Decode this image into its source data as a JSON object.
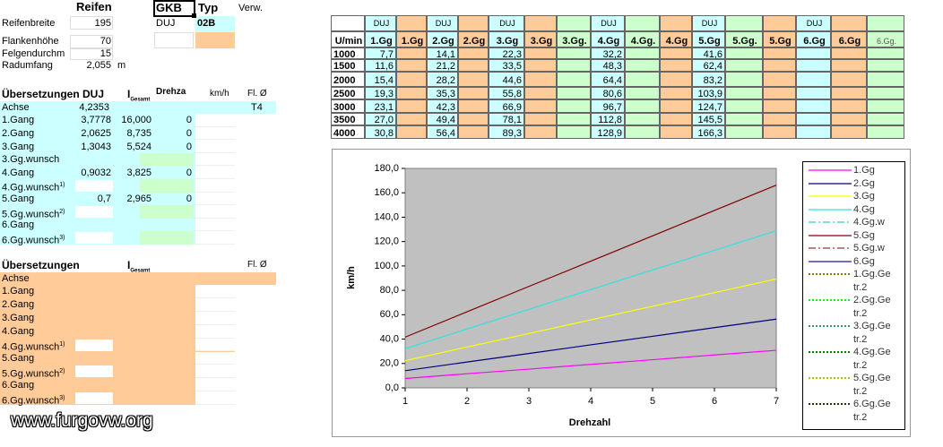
{
  "tire": {
    "title": "Reifen",
    "rows": [
      {
        "label": "Reifenbreite",
        "value": "195"
      },
      {
        "label": "Flankenhöhe",
        "value": "70"
      },
      {
        "label": "Felgendurchm",
        "value": "15"
      },
      {
        "label": "Radumfang",
        "value": "2,055",
        "unit": "m"
      }
    ]
  },
  "gkb": {
    "title": "GKB",
    "type_label": "Typ",
    "verw": "Verw.",
    "code": "DUJ",
    "type": "02B"
  },
  "ratios_duj": {
    "title": "Übersetzungen DUJ",
    "i": "I",
    "i_sub": "Gesamt",
    "drehzahl": "Drehza",
    "kmh": "km/h",
    "fl": "Fl. Ø",
    "axle": {
      "label": "Achse",
      "value": "4,2353",
      "fl": "T4"
    },
    "rows": [
      {
        "label": "1.Gang",
        "ratio": "3,7778",
        "total": "16,000",
        "rpm": "0"
      },
      {
        "label": "2.Gang",
        "ratio": "2,0625",
        "total": "8,735",
        "rpm": "0"
      },
      {
        "label": "3.Gang",
        "ratio": "1,3043",
        "total": "5,524",
        "rpm": "0"
      },
      {
        "label": "3.Gg.wunsch"
      },
      {
        "label": "4.Gang",
        "ratio": "0,9032",
        "total": "3,825",
        "rpm": "0"
      },
      {
        "label": "4.Gg.wunsch",
        "note": "1)"
      },
      {
        "label": "5.Gang",
        "ratio": "0,7",
        "total": "2,965",
        "rpm": "0"
      },
      {
        "label": "5.Gg.wunsch",
        "note": "2)"
      },
      {
        "label": "6.Gang"
      },
      {
        "label": "6.Gg.wunsch",
        "note": "3)"
      }
    ]
  },
  "ratios_2": {
    "title": "Übersetzungen",
    "i": "I",
    "i_sub": "Gesamt",
    "fl": "Fl. Ø",
    "axle": "Achse",
    "rows": [
      {
        "label": "1.Gang"
      },
      {
        "label": "2.Gang"
      },
      {
        "label": "3.Gang"
      },
      {
        "label": "4.Gang"
      },
      {
        "label": "4.Gg.wunsch",
        "note": "1)"
      },
      {
        "label": "5.Gang"
      },
      {
        "label": "5.Gg.wunsch",
        "note": "2)"
      },
      {
        "label": "6.Gang"
      },
      {
        "label": "6.Gg.wunsch",
        "note": "3)"
      }
    ]
  },
  "speed_table": {
    "corner": "U/min",
    "columns": [
      {
        "top": "DUJ",
        "label": "1.Gg",
        "color": "#ccffff"
      },
      {
        "label": "1.Gg",
        "color": "#ffcc99"
      },
      {
        "top": "DUJ",
        "label": "2.Gg",
        "color": "#ccffff"
      },
      {
        "label": "2.Gg",
        "color": "#ffcc99"
      },
      {
        "top": "DUJ",
        "label": "3.Gg",
        "color": "#ccffff"
      },
      {
        "label": "3.Gg",
        "color": "#ffcc99"
      },
      {
        "label": "3.Gg.",
        "color": "#ccffcc"
      },
      {
        "top": "DUJ",
        "label": "4.Gg",
        "color": "#ccffff"
      },
      {
        "label": "4.Gg.",
        "color": "#ccffcc"
      },
      {
        "label": "4.Gg",
        "color": "#ffcc99"
      },
      {
        "top": "DUJ",
        "label": "5.Gg",
        "color": "#ccffff"
      },
      {
        "label": "5.Gg.",
        "color": "#ccffcc"
      },
      {
        "label": "5.Gg",
        "color": "#ffcc99"
      },
      {
        "top": "DUJ",
        "label": "6.Gg",
        "color": "#ccffff"
      },
      {
        "label": "6.Gg",
        "color": "#ffcc99"
      },
      {
        "label": "6.Gg.",
        "color": "#ccffcc"
      }
    ],
    "rows": [
      {
        "rpm": "1000",
        "values": [
          "7,7",
          "14,1",
          "22,3",
          "32,2",
          "41,6"
        ]
      },
      {
        "rpm": "1500",
        "values": [
          "11,6",
          "21,2",
          "33,5",
          "48,3",
          "62,4"
        ]
      },
      {
        "rpm": "2000",
        "values": [
          "15,4",
          "28,2",
          "44,6",
          "64,4",
          "83,2"
        ]
      },
      {
        "rpm": "2500",
        "values": [
          "19,3",
          "35,3",
          "55,8",
          "80,6",
          "103,9"
        ]
      },
      {
        "rpm": "3000",
        "values": [
          "23,1",
          "42,3",
          "66,9",
          "96,7",
          "124,7"
        ]
      },
      {
        "rpm": "3500",
        "values": [
          "27,0",
          "49,4",
          "78,1",
          "112,8",
          "145,5"
        ]
      },
      {
        "rpm": "4000",
        "values": [
          "30,8",
          "56,4",
          "89,3",
          "128,9",
          "166,3"
        ]
      }
    ]
  },
  "watermark": "www.furgovw.org",
  "chart_data": {
    "type": "line",
    "xlabel": "Drehzahl",
    "ylabel": "km/h",
    "x": [
      1,
      2,
      3,
      4,
      5,
      6,
      7
    ],
    "xlim": [
      1,
      7
    ],
    "xticks": [
      1,
      2,
      3,
      4,
      5,
      6,
      7
    ],
    "ylim": [
      0,
      180
    ],
    "yticks": [
      {
        "value": 0,
        "label": "0,0"
      },
      {
        "value": 20,
        "label": "20,0"
      },
      {
        "value": 40,
        "label": "40,0"
      },
      {
        "value": 60,
        "label": "60,0"
      },
      {
        "value": 80,
        "label": "80,0"
      },
      {
        "value": 100,
        "label": "100,0"
      },
      {
        "value": 120,
        "label": "120,0"
      },
      {
        "value": 140,
        "label": "140,0"
      },
      {
        "value": 160,
        "label": "160,0"
      },
      {
        "value": 180,
        "label": "180,0"
      }
    ],
    "grid": false,
    "plot_color": "#c0c0c0",
    "series": [
      {
        "name": "1.Gg",
        "color": "#ff00ff",
        "style": "solid",
        "values": [
          7.7,
          11.6,
          15.4,
          19.3,
          23.1,
          27.0,
          30.8
        ]
      },
      {
        "name": "2.Gg",
        "color": "#000080",
        "style": "solid",
        "values": [
          14.1,
          21.2,
          28.2,
          35.3,
          42.3,
          49.4,
          56.4
        ]
      },
      {
        "name": "3.Gg",
        "color": "#ffff00",
        "style": "solid",
        "values": [
          22.3,
          33.5,
          44.6,
          55.8,
          66.9,
          78.1,
          89.3
        ]
      },
      {
        "name": "4.Gg",
        "color": "#33e0e0",
        "style": "solid",
        "values": [
          32.2,
          48.3,
          64.4,
          80.6,
          96.7,
          112.8,
          128.9
        ]
      },
      {
        "name": "4.Gg.w",
        "color": "#33cccc",
        "style": "dashdot",
        "values": [
          null,
          null,
          null,
          null,
          null,
          null,
          null
        ]
      },
      {
        "name": "5.Gg",
        "color": "#800000",
        "style": "solid",
        "values": [
          41.6,
          62.4,
          83.2,
          103.9,
          124.7,
          145.5,
          166.3
        ]
      },
      {
        "name": "5.Gg.w",
        "color": "#993333",
        "style": "dashdot",
        "values": [
          null,
          null,
          null,
          null,
          null,
          null,
          null
        ]
      },
      {
        "name": "6.Gg",
        "color": "#1a1aa0",
        "style": "solid",
        "values": [
          null,
          null,
          null,
          null,
          null,
          null,
          null
        ]
      },
      {
        "name": "1.Gg.Getr.2",
        "color": "#808000",
        "style": "dot",
        "values": [
          null,
          null,
          null,
          null,
          null,
          null,
          null
        ]
      },
      {
        "name": "2.Gg.Getr.2",
        "color": "#00ff00",
        "style": "dot",
        "values": [
          null,
          null,
          null,
          null,
          null,
          null,
          null
        ]
      },
      {
        "name": "3.Gg.Getr.2",
        "color": "#339966",
        "style": "dot",
        "values": [
          null,
          null,
          null,
          null,
          null,
          null,
          null
        ]
      },
      {
        "name": "4.Gg.Getr.2",
        "color": "#008000",
        "style": "dot",
        "values": [
          null,
          null,
          null,
          null,
          null,
          null,
          null
        ]
      },
      {
        "name": "5.Gg.Getr.2",
        "color": "#99cc00",
        "style": "dot",
        "values": [
          null,
          null,
          null,
          null,
          null,
          null,
          null
        ]
      },
      {
        "name": "6.Gg.Getr.2",
        "color": "#333300",
        "style": "dot",
        "values": [
          null,
          null,
          null,
          null,
          null,
          null,
          null
        ]
      }
    ]
  }
}
